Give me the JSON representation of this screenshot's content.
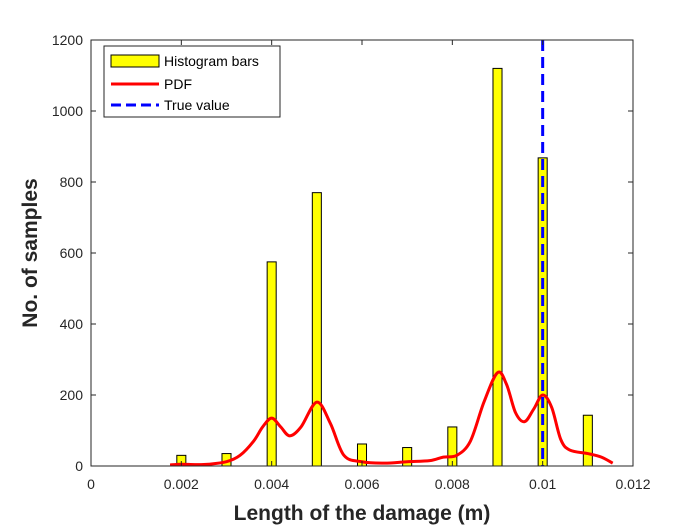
{
  "chart_data": {
    "type": "bar",
    "xlabel": "Length of the damage (m)",
    "ylabel": "No. of samples",
    "xlim": [
      0,
      0.012
    ],
    "ylim": [
      0,
      1200
    ],
    "xticks": [
      "0",
      "0.002",
      "0.004",
      "0.006",
      "0.008",
      "0.01",
      "0.012"
    ],
    "yticks": [
      "0",
      "200",
      "400",
      "600",
      "800",
      "1000",
      "1200"
    ],
    "grid": false,
    "legend_position": "top-left",
    "legend": [
      "Histogram bars",
      "PDF",
      "True value"
    ],
    "colors": {
      "bars": "#ffff00",
      "bar_edge": "#000000",
      "pdf": "#ff0000",
      "true_value": "#0000ff"
    },
    "series": [
      {
        "name": "Histogram bars",
        "kind": "bar",
        "x": [
          0.002,
          0.003,
          0.004,
          0.005,
          0.006,
          0.007,
          0.008,
          0.009,
          0.01,
          0.011
        ],
        "values": [
          30,
          35,
          575,
          770,
          62,
          52,
          110,
          1120,
          868,
          143
        ],
        "bar_width": 0.0002
      },
      {
        "name": "PDF",
        "kind": "line",
        "x": [
          0.00175,
          0.002,
          0.0023,
          0.0026,
          0.003,
          0.0033,
          0.0036,
          0.0038,
          0.004,
          0.0042,
          0.0044,
          0.00465,
          0.005,
          0.0053,
          0.0056,
          0.006,
          0.0065,
          0.007,
          0.0075,
          0.0078,
          0.0081,
          0.0084,
          0.0087,
          0.009,
          0.0092,
          0.0094,
          0.0096,
          0.0098,
          0.01,
          0.0102,
          0.0104,
          0.0106,
          0.011,
          0.0113,
          0.01155
        ],
        "values": [
          3,
          5,
          4,
          5,
          12,
          30,
          70,
          110,
          135,
          110,
          85,
          110,
          180,
          120,
          30,
          12,
          8,
          12,
          15,
          25,
          30,
          70,
          180,
          263,
          230,
          150,
          125,
          160,
          200,
          165,
          75,
          45,
          35,
          25,
          8
        ]
      },
      {
        "name": "True value",
        "kind": "vline",
        "x": [
          0.01
        ]
      }
    ]
  }
}
